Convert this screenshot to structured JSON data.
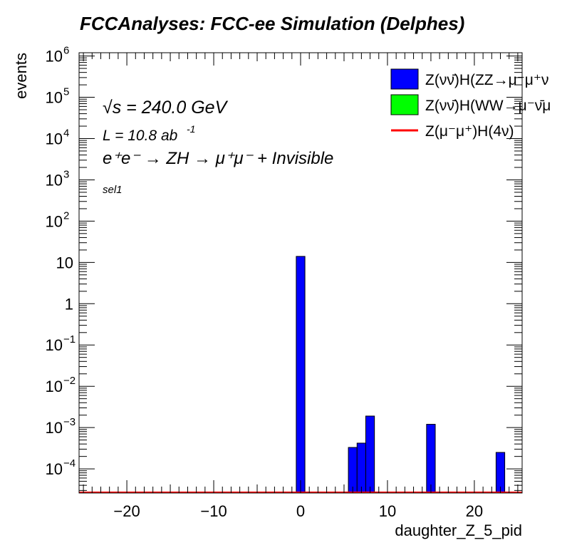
{
  "chart_data": {
    "type": "bar",
    "title": "FCCAnalyses: FCC-ee Simulation (Delphes)",
    "xlabel": "daughter_Z_5_pid",
    "ylabel": "events",
    "xlim": [
      -25.5,
      25.5
    ],
    "ylim": [
      2.6e-05,
      1200000.0
    ],
    "yscale": "log",
    "bin_width": 1,
    "xticks": [
      -20,
      -10,
      0,
      10,
      20
    ],
    "xtick_labels": [
      "−20",
      "−10",
      "0",
      "10",
      "20"
    ],
    "yticks": [
      {
        "base": "10",
        "exp": "−4",
        "value": 0.0001
      },
      {
        "base": "10",
        "exp": "−3",
        "value": 0.001
      },
      {
        "base": "10",
        "exp": "−2",
        "value": 0.01
      },
      {
        "base": "10",
        "exp": "−1",
        "value": 0.1
      },
      {
        "base": "1",
        "exp": "",
        "value": 1
      },
      {
        "base": "10",
        "exp": "",
        "value": 10
      },
      {
        "base": "10",
        "exp": "2",
        "value": 100
      },
      {
        "base": "10",
        "exp": "3",
        "value": 1000
      },
      {
        "base": "10",
        "exp": "4",
        "value": 10000
      },
      {
        "base": "10",
        "exp": "5",
        "value": 100000
      },
      {
        "base": "10",
        "exp": "6",
        "value": 1000000
      }
    ],
    "series": [
      {
        "name": "Z(νν̄)H(ZZ→μ⁻μ⁺ν",
        "color": "#0000ff",
        "style": "filled-bar",
        "bins": [
          {
            "x": 0,
            "value": 14.0
          },
          {
            "x": 6,
            "value": 0.00033
          },
          {
            "x": 7,
            "value": 0.00042
          },
          {
            "x": 8,
            "value": 0.0019
          },
          {
            "x": 15,
            "value": 0.0012
          },
          {
            "x": 23,
            "value": 0.00025
          }
        ]
      },
      {
        "name": "Z(νν̄)H(WW→μ⁻ν̄μ",
        "color": "#00ff00",
        "style": "filled-bar",
        "bins": []
      },
      {
        "name": "Z(μ⁻μ⁺)H(4ν)",
        "color": "#ff0000",
        "style": "line",
        "bins": []
      }
    ],
    "legend_position": "top-right",
    "annotations": {
      "sqrt_s": "√s = 240.0 GeV",
      "lumi_text": "L = 10.8 ab",
      "lumi_exp": "-1",
      "process": "e⁺e⁻ → ZH → μ⁺μ⁻ + Invisible",
      "selection": "sel1"
    }
  }
}
